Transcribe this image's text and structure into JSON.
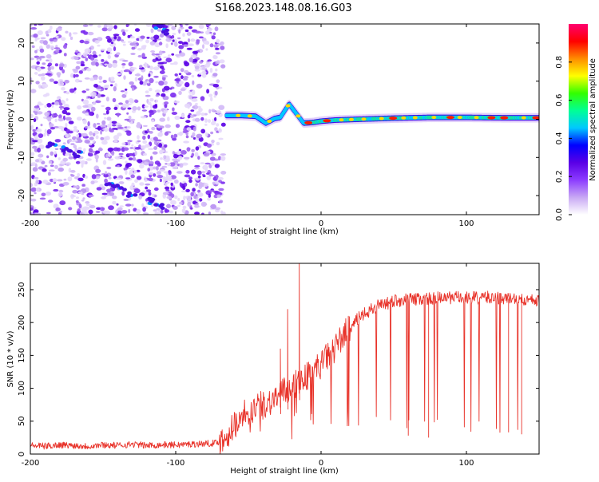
{
  "title": "S168.2023.148.08.16.G03",
  "chart_data": [
    {
      "type": "heatmap",
      "xlabel": "Height of straight line (km)",
      "ylabel": "Frequency (Hz)",
      "xlim": [
        -200,
        150
      ],
      "ylim": [
        -25,
        25
      ],
      "xticks": [
        -200,
        -100,
        0,
        100
      ],
      "yticks": [
        -20,
        -10,
        0,
        10,
        20
      ],
      "colorbar": {
        "label": "Normalized spectral amplitude",
        "range": [
          0,
          1
        ],
        "ticks": [
          "0.0",
          "0.2",
          "0.4",
          "0.6",
          "0.8"
        ],
        "tick_values": [
          0,
          0.2,
          0.4,
          0.6,
          0.8
        ],
        "colors": [
          "#ffffff",
          "#c8a8f4",
          "#8c3cff",
          "#5a00e6",
          "#0000ff",
          "#00c8ff",
          "#00ff96",
          "#32ff00",
          "#ffff00",
          "#ff8c00",
          "#ff0000",
          "#ff0070"
        ]
      },
      "noise_region_x": [
        -200,
        -67
      ],
      "streak_points": [
        {
          "x": -108,
          "y": 23
        },
        {
          "x": -112,
          "y": 24.5
        },
        {
          "x": -112,
          "y": -23
        },
        {
          "x": -118,
          "y": -21.5
        },
        {
          "x": -130,
          "y": -19.5
        },
        {
          "x": -138,
          "y": -18
        },
        {
          "x": -145,
          "y": -17
        },
        {
          "x": -168,
          "y": -9
        },
        {
          "x": -175,
          "y": -8
        },
        {
          "x": -185,
          "y": -7
        }
      ],
      "signal_track": [
        {
          "x": -65,
          "y": 1.0
        },
        {
          "x": -55,
          "y": 1.0
        },
        {
          "x": -45,
          "y": 0.8
        },
        {
          "x": -38,
          "y": -1.0
        },
        {
          "x": -32,
          "y": 0.2
        },
        {
          "x": -28,
          "y": 0.5
        },
        {
          "x": -22,
          "y": 4.0
        },
        {
          "x": -18,
          "y": 2.0
        },
        {
          "x": -12,
          "y": -1.0
        },
        {
          "x": -5,
          "y": -0.8
        },
        {
          "x": 0,
          "y": -0.5
        },
        {
          "x": 10,
          "y": -0.2
        },
        {
          "x": 25,
          "y": 0
        },
        {
          "x": 50,
          "y": 0.3
        },
        {
          "x": 75,
          "y": 0.5
        },
        {
          "x": 100,
          "y": 0.5
        },
        {
          "x": 125,
          "y": 0.4
        },
        {
          "x": 150,
          "y": 0.4
        }
      ]
    },
    {
      "type": "line",
      "xlabel": "Height of straight line (km)",
      "ylabel": "SNR (10 * v/v)",
      "xlim": [
        -200,
        150
      ],
      "ylim": [
        0,
        290
      ],
      "xticks": [
        -200,
        -100,
        0,
        100
      ],
      "yticks": [
        0,
        50,
        100,
        150,
        200,
        250
      ],
      "series": [
        {
          "color": "#e8332a",
          "x": [
            -200,
            -190,
            -180,
            -170,
            -160,
            -150,
            -140,
            -130,
            -120,
            -110,
            -100,
            -90,
            -80,
            -72,
            -66,
            -60,
            -55,
            -50,
            -45,
            -40,
            -35,
            -30,
            -25,
            -20,
            -15,
            -10,
            -5,
            0,
            5,
            10,
            15,
            20,
            25,
            30,
            35,
            40,
            50,
            60,
            70,
            80,
            90,
            100,
            110,
            120,
            130,
            140,
            150
          ],
          "values": [
            13,
            12,
            14,
            13,
            12,
            14,
            13,
            15,
            13,
            14,
            14,
            15,
            16,
            17,
            24,
            45,
            60,
            65,
            70,
            75,
            80,
            88,
            95,
            102,
            112,
            118,
            128,
            136,
            150,
            162,
            180,
            193,
            205,
            213,
            220,
            226,
            233,
            235,
            236,
            237,
            238,
            237,
            238,
            238,
            236,
            234,
            232
          ]
        }
      ],
      "spikes": [
        {
          "x": -15,
          "y": 290
        },
        {
          "x": -23,
          "y": 220
        },
        {
          "x": -28,
          "y": 160
        }
      ],
      "dropouts": [
        {
          "x": 60,
          "y": 28
        },
        {
          "x": 74,
          "y": 25
        },
        {
          "x": 129,
          "y": 33
        },
        {
          "x": 138,
          "y": 30
        }
      ]
    }
  ]
}
